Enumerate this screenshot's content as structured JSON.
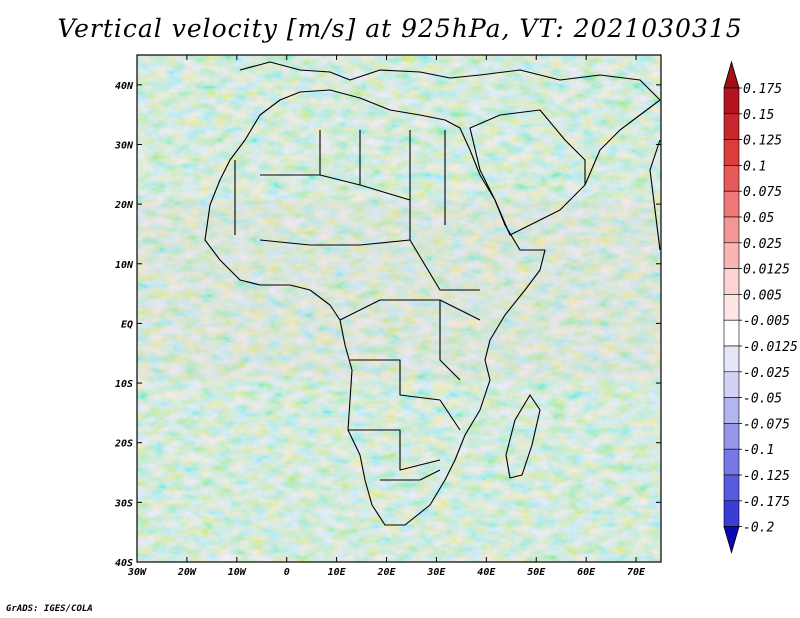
{
  "title": "Vertical velocity [m/s] at 925hPa, VT: 2021030315",
  "credit": "GrADS: IGES/COLA",
  "map": {
    "lon_range": [
      -30,
      75
    ],
    "lat_range": [
      -40,
      45
    ],
    "x_ticks": [
      {
        "value": -30,
        "label": "30W"
      },
      {
        "value": -20,
        "label": "20W"
      },
      {
        "value": -10,
        "label": "10W"
      },
      {
        "value": 0,
        "label": "0"
      },
      {
        "value": 10,
        "label": "10E"
      },
      {
        "value": 20,
        "label": "20E"
      },
      {
        "value": 30,
        "label": "30E"
      },
      {
        "value": 40,
        "label": "40E"
      },
      {
        "value": 50,
        "label": "50E"
      },
      {
        "value": 60,
        "label": "60E"
      },
      {
        "value": 70,
        "label": "70E"
      }
    ],
    "y_ticks": [
      {
        "value": 40,
        "label": "40N"
      },
      {
        "value": 30,
        "label": "30N"
      },
      {
        "value": 20,
        "label": "20N"
      },
      {
        "value": 10,
        "label": "10N"
      },
      {
        "value": 0,
        "label": "EQ"
      },
      {
        "value": -10,
        "label": "10S"
      },
      {
        "value": -20,
        "label": "20S"
      },
      {
        "value": -30,
        "label": "30S"
      },
      {
        "value": -40,
        "label": "40S"
      }
    ]
  },
  "colorbar": {
    "levels": [
      {
        "label": "0.175",
        "color": "#b4141e"
      },
      {
        "label": "0.15",
        "color": "#c8282d"
      },
      {
        "label": "0.125",
        "color": "#dc3c3c"
      },
      {
        "label": "0.1",
        "color": "#e65a5a"
      },
      {
        "label": "0.075",
        "color": "#f07878"
      },
      {
        "label": "0.05",
        "color": "#f59696"
      },
      {
        "label": "0.025",
        "color": "#fab4b4"
      },
      {
        "label": "0.0125",
        "color": "#fcd2d2"
      },
      {
        "label": "0.005",
        "color": "#fde6e6"
      },
      {
        "label": "-0.005",
        "color": "#ffffff"
      },
      {
        "label": "-0.0125",
        "color": "#e6e6fa"
      },
      {
        "label": "-0.025",
        "color": "#d2d2f5"
      },
      {
        "label": "-0.05",
        "color": "#b4b4f0"
      },
      {
        "label": "-0.075",
        "color": "#9696eb"
      },
      {
        "label": "-0.1",
        "color": "#7878e6"
      },
      {
        "label": "-0.125",
        "color": "#5a5ae1"
      },
      {
        "label": "-0.175",
        "color": "#3c3cd7"
      },
      {
        "label": "-0.2",
        "color": "#1e1ec8"
      }
    ],
    "top_arrow_color": "#a01014",
    "bottom_arrow_color": "#0a0ab4"
  }
}
